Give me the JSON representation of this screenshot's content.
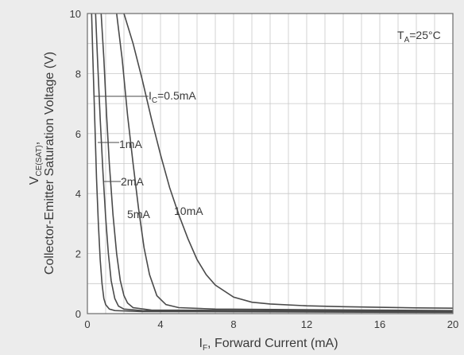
{
  "chart_data": {
    "type": "line",
    "xlabel": {
      "prefix": "I",
      "sub": "F",
      "rest": ", Forward Current (mA)"
    },
    "ylabel": {
      "line1_prefix": "V",
      "line1_sub": "CE(SAT)",
      "line1_rest": ",",
      "line2": "Collector-Emitter Saturation Voltage (V)"
    },
    "xlim": [
      0,
      20
    ],
    "ylim": [
      0,
      10
    ],
    "xticks": [
      "0",
      "4",
      "8",
      "12",
      "16",
      "20"
    ],
    "yticks": [
      "0",
      "2",
      "4",
      "6",
      "8",
      "10"
    ],
    "grid": true,
    "condition": {
      "prefix": "T",
      "sub": "A",
      "rest": "=25°C"
    },
    "line_color": "#4a4a4a",
    "background": "#ececec",
    "plot_background": "#ffffff",
    "series": [
      {
        "name": "0.5mA",
        "label": {
          "prefix": "I",
          "sub": "C",
          "rest": "=0.5mA"
        },
        "points": [
          [
            0.23,
            10
          ],
          [
            0.3,
            8.5
          ],
          [
            0.4,
            6.5
          ],
          [
            0.5,
            4.5
          ],
          [
            0.6,
            3.0
          ],
          [
            0.7,
            1.8
          ],
          [
            0.8,
            1.0
          ],
          [
            0.9,
            0.5
          ],
          [
            1.0,
            0.3
          ],
          [
            1.2,
            0.15
          ],
          [
            1.5,
            0.1
          ],
          [
            3,
            0.07
          ],
          [
            20,
            0.04
          ]
        ]
      },
      {
        "name": "1mA",
        "label": {
          "prefix": "",
          "sub": "",
          "rest": "1mA"
        },
        "points": [
          [
            0.45,
            10
          ],
          [
            0.55,
            8.5
          ],
          [
            0.7,
            6.5
          ],
          [
            0.85,
            4.7
          ],
          [
            1.0,
            3.2
          ],
          [
            1.15,
            2.0
          ],
          [
            1.3,
            1.1
          ],
          [
            1.5,
            0.5
          ],
          [
            1.7,
            0.25
          ],
          [
            2.0,
            0.15
          ],
          [
            3,
            0.1
          ],
          [
            20,
            0.06
          ]
        ]
      },
      {
        "name": "2mA",
        "label": {
          "prefix": "",
          "sub": "",
          "rest": "2mA"
        },
        "points": [
          [
            0.75,
            10
          ],
          [
            0.9,
            8.5
          ],
          [
            1.05,
            6.6
          ],
          [
            1.2,
            5.0
          ],
          [
            1.4,
            3.3
          ],
          [
            1.6,
            2.0
          ],
          [
            1.8,
            1.1
          ],
          [
            2.0,
            0.6
          ],
          [
            2.2,
            0.35
          ],
          [
            2.5,
            0.2
          ],
          [
            3.5,
            0.12
          ],
          [
            20,
            0.08
          ]
        ]
      },
      {
        "name": "5mA",
        "label": {
          "prefix": "",
          "sub": "",
          "rest": "5mA"
        },
        "points": [
          [
            1.6,
            10
          ],
          [
            1.9,
            8.5
          ],
          [
            2.2,
            6.6
          ],
          [
            2.5,
            5.0
          ],
          [
            2.8,
            3.5
          ],
          [
            3.1,
            2.2
          ],
          [
            3.4,
            1.3
          ],
          [
            3.8,
            0.6
          ],
          [
            4.3,
            0.3
          ],
          [
            5.0,
            0.2
          ],
          [
            7.0,
            0.15
          ],
          [
            20,
            0.1
          ]
        ]
      },
      {
        "name": "10mA",
        "label": {
          "prefix": "",
          "sub": "",
          "rest": "10mA"
        },
        "points": [
          [
            2.0,
            10
          ],
          [
            2.5,
            9.0
          ],
          [
            3.0,
            7.8
          ],
          [
            3.5,
            6.5
          ],
          [
            4.0,
            5.3
          ],
          [
            4.5,
            4.2
          ],
          [
            5.0,
            3.3
          ],
          [
            5.5,
            2.5
          ],
          [
            6.0,
            1.8
          ],
          [
            6.5,
            1.3
          ],
          [
            7.0,
            0.95
          ],
          [
            8.0,
            0.55
          ],
          [
            9.0,
            0.38
          ],
          [
            10.0,
            0.32
          ],
          [
            12.0,
            0.26
          ],
          [
            14.0,
            0.23
          ],
          [
            16.0,
            0.21
          ],
          [
            18.0,
            0.19
          ],
          [
            20.0,
            0.18
          ]
        ]
      }
    ]
  }
}
